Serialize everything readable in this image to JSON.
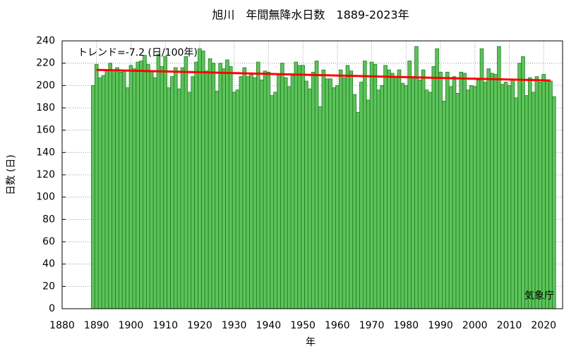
{
  "chart_data": {
    "type": "bar",
    "title": "旭川　年間無降水日数　1889-2023年",
    "xlabel": "年",
    "ylabel": "日数 (日)",
    "annotation": "トレンド=-7.2 (日/100年)",
    "source": "気象庁",
    "color": "#5cc45a",
    "edge_color": "#237a23",
    "x": [
      1889,
      1890,
      1891,
      1892,
      1893,
      1894,
      1895,
      1896,
      1897,
      1898,
      1899,
      1900,
      1901,
      1902,
      1903,
      1904,
      1905,
      1906,
      1907,
      1908,
      1909,
      1910,
      1911,
      1912,
      1913,
      1914,
      1915,
      1916,
      1917,
      1918,
      1919,
      1920,
      1921,
      1922,
      1923,
      1924,
      1925,
      1926,
      1927,
      1928,
      1929,
      1930,
      1931,
      1932,
      1933,
      1934,
      1935,
      1936,
      1937,
      1938,
      1939,
      1940,
      1941,
      1942,
      1943,
      1944,
      1945,
      1946,
      1947,
      1948,
      1949,
      1950,
      1951,
      1952,
      1953,
      1954,
      1955,
      1956,
      1957,
      1958,
      1959,
      1960,
      1961,
      1962,
      1963,
      1964,
      1965,
      1966,
      1967,
      1968,
      1969,
      1970,
      1971,
      1972,
      1973,
      1974,
      1975,
      1976,
      1977,
      1978,
      1979,
      1980,
      1981,
      1982,
      1983,
      1984,
      1985,
      1986,
      1987,
      1988,
      1989,
      1990,
      1991,
      1992,
      1993,
      1994,
      1995,
      1996,
      1997,
      1998,
      1999,
      2000,
      2001,
      2002,
      2003,
      2004,
      2005,
      2006,
      2007,
      2008,
      2009,
      2010,
      2011,
      2012,
      2013,
      2014,
      2015,
      2016,
      2017,
      2018,
      2019,
      2020,
      2021,
      2022,
      2023
    ],
    "values": [
      200,
      219,
      207,
      209,
      214,
      220,
      214,
      216,
      212,
      213,
      198,
      218,
      215,
      221,
      222,
      227,
      219,
      213,
      207,
      228,
      217,
      226,
      198,
      208,
      216,
      197,
      216,
      226,
      194,
      208,
      221,
      233,
      231,
      213,
      224,
      220,
      195,
      220,
      215,
      223,
      217,
      194,
      196,
      208,
      216,
      208,
      210,
      207,
      221,
      205,
      213,
      212,
      191,
      194,
      210,
      220,
      207,
      199,
      209,
      221,
      218,
      218,
      204,
      197,
      212,
      222,
      181,
      214,
      206,
      206,
      198,
      200,
      214,
      207,
      218,
      213,
      192,
      176,
      203,
      222,
      187,
      221,
      219,
      196,
      200,
      218,
      214,
      211,
      208,
      214,
      202,
      200,
      222,
      208,
      235,
      205,
      214,
      196,
      194,
      217,
      233,
      212,
      186,
      212,
      199,
      208,
      193,
      212,
      211,
      196,
      200,
      199,
      205,
      233,
      203,
      215,
      211,
      210,
      235,
      201,
      203,
      200,
      205,
      189,
      220,
      226,
      191,
      207,
      194,
      208,
      203,
      210,
      204,
      204,
      190
    ],
    "trend": {
      "x": [
        1890,
        2022
      ],
      "values": [
        214,
        204.5
      ],
      "color": "#ff0000"
    },
    "xlim": [
      1880,
      2025.5
    ],
    "ylim": [
      0,
      240
    ],
    "xticks": [
      1880,
      1890,
      1900,
      1910,
      1920,
      1930,
      1940,
      1950,
      1960,
      1970,
      1980,
      1990,
      2000,
      2010,
      2020
    ],
    "yticks": [
      0,
      20,
      40,
      60,
      80,
      100,
      120,
      140,
      160,
      180,
      200,
      220,
      240
    ],
    "grid": true
  }
}
